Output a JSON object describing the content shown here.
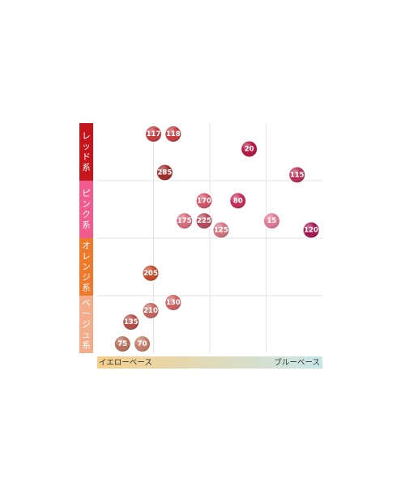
{
  "chart_data": {
    "type": "scatter",
    "x_axis": {
      "left_label": "イエローベース",
      "right_label": "ブルーベース",
      "gradient": [
        "#f6ce8a",
        "#c8e6e8"
      ]
    },
    "y_axis": {
      "categories": [
        {
          "label": "レッド系",
          "color": "#c4161c"
        },
        {
          "label": "ピンク系",
          "color": "#f05a8d"
        },
        {
          "label": "オレンジ系",
          "color": "#ee7a2c"
        },
        {
          "label": "ベージュ系",
          "color": "#f4ad8b"
        }
      ]
    },
    "grid": true,
    "points": [
      {
        "label": "117",
        "category": "レッド系",
        "x": 1.0,
        "y": 0.19,
        "color": "#c43a3e"
      },
      {
        "label": "118",
        "category": "レッド系",
        "x": 1.35,
        "y": 0.19,
        "color": "#c43a3e"
      },
      {
        "label": "20",
        "category": "レッド系",
        "x": 2.7,
        "y": 0.45,
        "color": "#b5123c"
      },
      {
        "label": "285",
        "category": "レッド系",
        "x": 1.2,
        "y": 0.86,
        "color": "#9c2a25"
      },
      {
        "label": "115",
        "category": "レッド系",
        "x": 3.55,
        "y": 0.9,
        "color": "#b82b55"
      },
      {
        "label": "170",
        "category": "ピンク系",
        "x": 1.9,
        "y": 1.35,
        "color": "#d35064"
      },
      {
        "label": "80",
        "category": "ピンク系",
        "x": 2.5,
        "y": 1.35,
        "color": "#c42a56"
      },
      {
        "label": "175",
        "category": "ピンク系",
        "x": 1.55,
        "y": 1.7,
        "color": "#d76877"
      },
      {
        "label": "225",
        "category": "ピンク系",
        "x": 1.9,
        "y": 1.7,
        "color": "#b54856"
      },
      {
        "label": "15",
        "category": "ピンク系",
        "x": 3.1,
        "y": 1.7,
        "color": "#e07796"
      },
      {
        "label": "125",
        "category": "ピンク系",
        "x": 2.2,
        "y": 1.86,
        "color": "#d1717d"
      },
      {
        "label": "120",
        "category": "ピンク系",
        "x": 3.8,
        "y": 1.86,
        "color": "#a5104c"
      },
      {
        "label": "205",
        "category": "オレンジ系",
        "x": 0.95,
        "y": 2.61,
        "color": "#c24828"
      },
      {
        "label": "130",
        "category": "ベージュ系",
        "x": 1.35,
        "y": 3.12,
        "color": "#cd5d5f"
      },
      {
        "label": "210",
        "category": "ベージュ系",
        "x": 0.95,
        "y": 3.26,
        "color": "#c5635b"
      },
      {
        "label": "135",
        "category": "ベージュ系",
        "x": 0.6,
        "y": 3.46,
        "color": "#b34b45"
      },
      {
        "label": "75",
        "category": "ベージュ系",
        "x": 0.45,
        "y": 3.84,
        "color": "#b66f5b"
      },
      {
        "label": "70",
        "category": "ベージュ系",
        "x": 0.8,
        "y": 3.84,
        "color": "#c47a66"
      }
    ]
  }
}
